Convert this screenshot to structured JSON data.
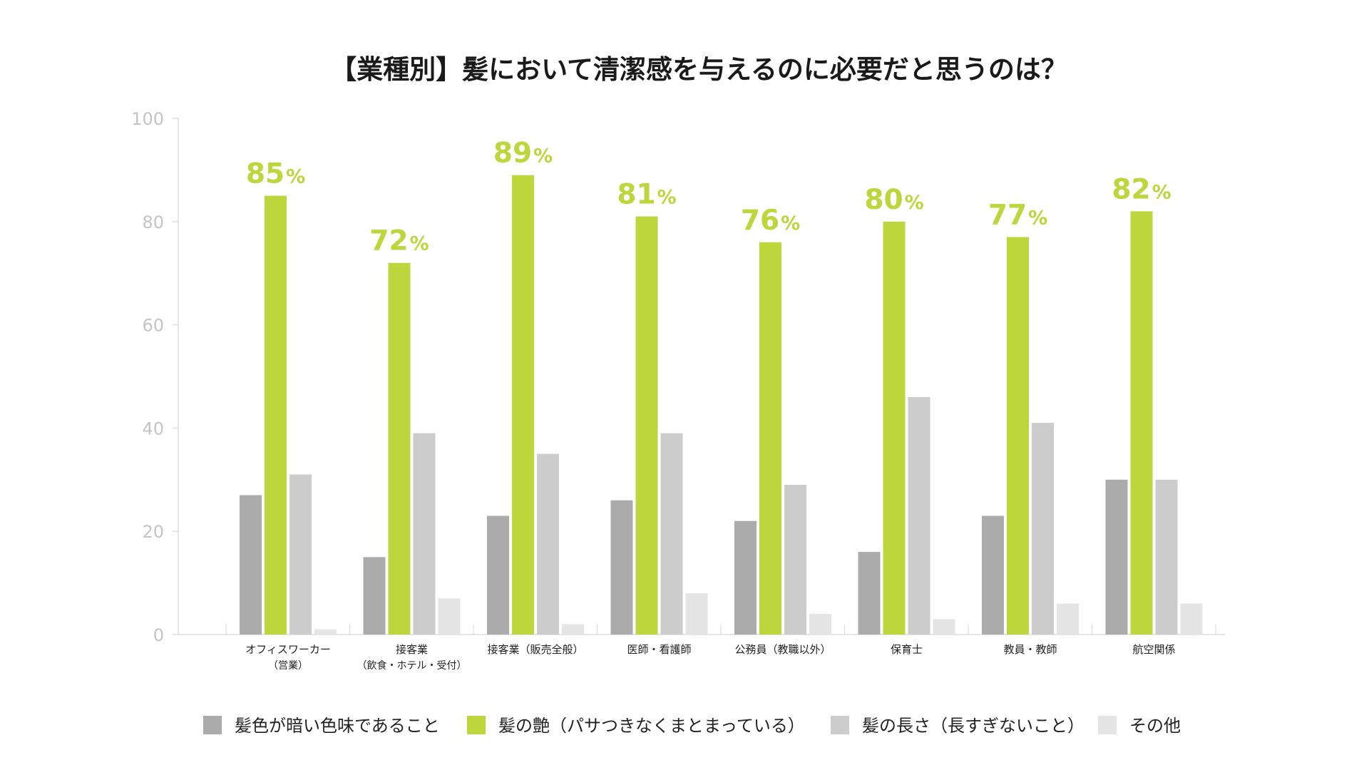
{
  "chart_data": {
    "type": "bar",
    "title": "【業種別】髪において清潔感を与えるのに必要だと思うのは？",
    "categories": [
      [
        "オフィスワーカー",
        "（営業）"
      ],
      [
        "接客業",
        "（飲食・ホテル・受付）"
      ],
      [
        "接客業（販売全般）"
      ],
      [
        "医師・看護師"
      ],
      [
        "公務員（教職以外）"
      ],
      [
        "保育士"
      ],
      [
        "教員・教師"
      ],
      [
        "航空関係"
      ]
    ],
    "series": [
      {
        "name": "髪色が暗い色味であること",
        "color": "#ababab",
        "values": [
          27,
          15,
          23,
          26,
          22,
          16,
          23,
          30
        ]
      },
      {
        "name": "髪の艶（パサつきなくまとまっている）",
        "color": "#bcd63c",
        "values": [
          85,
          72,
          89,
          81,
          76,
          80,
          77,
          82
        ]
      },
      {
        "name": "髪の長さ（長すぎないこと）",
        "color": "#cccccc",
        "values": [
          31,
          39,
          35,
          39,
          29,
          46,
          41,
          30
        ]
      },
      {
        "name": "その他",
        "color": "#e5e5e5",
        "values": [
          1,
          7,
          2,
          8,
          4,
          3,
          6,
          6
        ]
      }
    ],
    "highlight_labels": [
      "85",
      "72",
      "89",
      "81",
      "76",
      "80",
      "77",
      "82"
    ],
    "highlight_unit": "%",
    "yticks": [
      0,
      20,
      40,
      60,
      80,
      100
    ],
    "ylim": [
      0,
      100
    ],
    "grid": false,
    "legend_position": "bottom"
  },
  "colors": {
    "accent": "#bcd63c",
    "axis": "#dddddd",
    "tick_text": "#c4c4c4",
    "title_text": "#1a1a1a"
  }
}
